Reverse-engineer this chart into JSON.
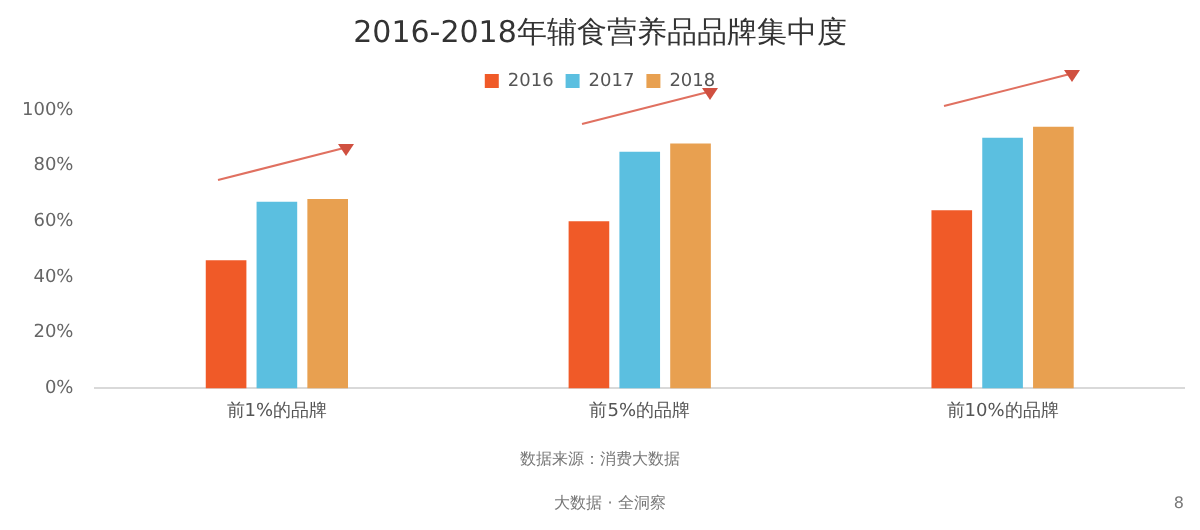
{
  "chart_data": {
    "type": "bar",
    "title": "2016-2018年辅食营养品品牌集中度",
    "categories": [
      "前1%的品牌",
      "前5%的品牌",
      "前10%的品牌"
    ],
    "series": [
      {
        "name": "2016",
        "color": "#f05a28",
        "values": [
          46,
          60,
          64
        ]
      },
      {
        "name": "2017",
        "color": "#5bbfe0",
        "values": [
          67,
          85,
          90
        ]
      },
      {
        "name": "2018",
        "color": "#e8a050",
        "values": [
          68,
          88,
          94
        ]
      }
    ],
    "ylim": [
      0,
      100
    ],
    "yticks": [
      {
        "value": 0,
        "label": "0%"
      },
      {
        "value": 20,
        "label": "20%"
      },
      {
        "value": 40,
        "label": "40%"
      },
      {
        "value": 60,
        "label": "60%"
      },
      {
        "value": 80,
        "label": "80%"
      },
      {
        "value": 100,
        "label": "100%"
      }
    ],
    "grid": false,
    "legend": "top",
    "annotations": [
      "数据来源：消费大数据",
      "大数据 · 全洞察",
      "8"
    ]
  }
}
